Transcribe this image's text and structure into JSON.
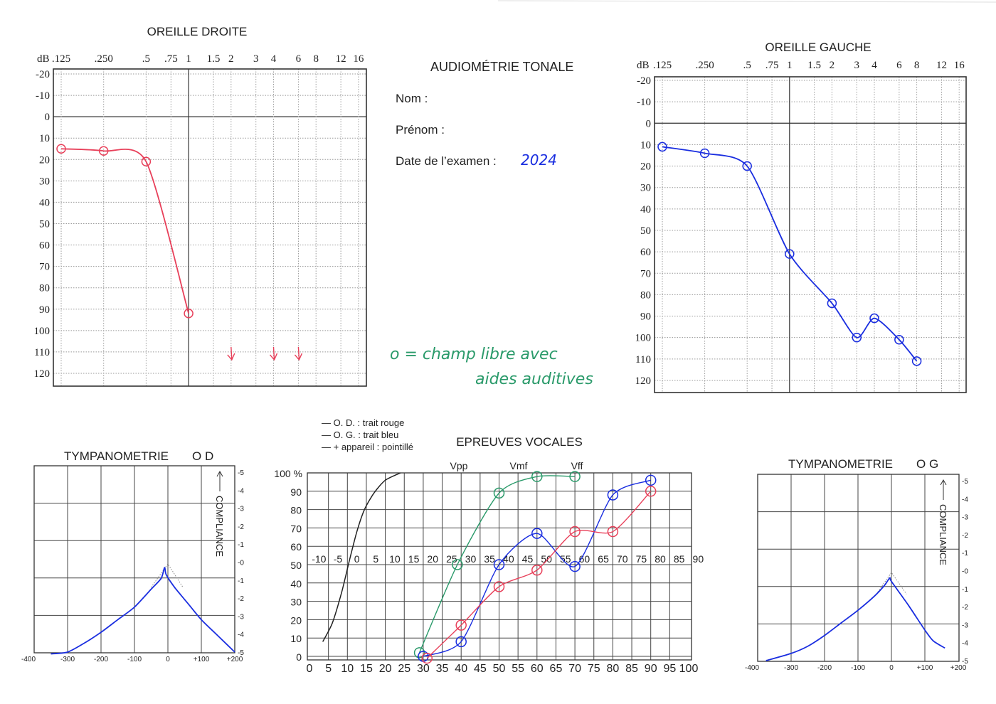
{
  "form": {
    "title": "AUDIOMÉTRIE TONALE",
    "nom_label": "Nom :",
    "prenom_label": "Prénom :",
    "date_label": "Date de l’examen :",
    "date_value": "2024",
    "note_line1": "o = champ libre avec",
    "note_line2": "aides auditives",
    "handwriting_blue": "#1a2ee0",
    "handwriting_green": "#2a9a6a"
  },
  "speech_legend": [
    "— O. D. : trait rouge",
    "— O. G. : trait bleu",
    "— + appareil : pointillé"
  ],
  "chart_data": [
    {
      "type": "line",
      "title": "OREILLE DROITE",
      "y_unit_label": "dB",
      "x_scale": "log",
      "x_ticks": [
        ".125",
        ".250",
        ".5",
        ".75",
        "1",
        "1.5",
        "2",
        "3",
        "4",
        "6",
        "8",
        "12",
        "16"
      ],
      "x_values_khz": [
        0.125,
        0.25,
        0.5,
        0.75,
        1,
        1.5,
        2,
        3,
        4,
        6,
        8,
        12,
        16
      ],
      "y_ticks": [
        -20,
        -10,
        0,
        10,
        20,
        30,
        40,
        50,
        60,
        70,
        80,
        90,
        100,
        110,
        120
      ],
      "ylim": [
        -20,
        120
      ],
      "y_inverted": true,
      "grid": "dotted",
      "series": [
        {
          "color": "#e8405a",
          "marker": "circle",
          "points": [
            [
              0.125,
              15
            ],
            [
              0.25,
              16
            ],
            [
              0.5,
              21
            ],
            [
              1,
              92
            ]
          ]
        }
      ],
      "no_response_khz": [
        2,
        4,
        6
      ],
      "no_response_db": 112
    },
    {
      "type": "line",
      "title": "OREILLE GAUCHE",
      "y_unit_label": "dB",
      "x_scale": "log",
      "x_ticks": [
        ".125",
        ".250",
        ".5",
        ".75",
        "1",
        "1.5",
        "2",
        "3",
        "4",
        "6",
        "8",
        "12",
        "16"
      ],
      "x_values_khz": [
        0.125,
        0.25,
        0.5,
        0.75,
        1,
        1.5,
        2,
        3,
        4,
        6,
        8,
        12,
        16
      ],
      "y_ticks": [
        -20,
        -10,
        0,
        10,
        20,
        30,
        40,
        50,
        60,
        70,
        80,
        90,
        100,
        110,
        120
      ],
      "ylim": [
        -20,
        120
      ],
      "y_inverted": true,
      "grid": "dotted",
      "series": [
        {
          "color": "#1a2ee0",
          "marker": "circle",
          "points": [
            [
              0.125,
              11
            ],
            [
              0.25,
              14
            ],
            [
              0.5,
              20
            ],
            [
              1,
              61
            ],
            [
              2,
              84
            ],
            [
              3,
              100
            ],
            [
              4,
              91
            ],
            [
              6,
              101
            ],
            [
              8,
              111
            ]
          ]
        }
      ]
    },
    {
      "type": "line",
      "title": "EPREUVES   VOCALES",
      "xlim": [
        0,
        100
      ],
      "ylim": [
        0,
        100
      ],
      "x_ticks": [
        "0",
        "5",
        "10",
        "15",
        "20",
        "25",
        "30",
        "35",
        "40",
        "45",
        "50",
        "55",
        "60",
        "65",
        "70",
        "75",
        "80",
        "85",
        "90",
        "95",
        "100"
      ],
      "secondary_x_ticks": [
        "-10",
        "-5",
        "0",
        "5",
        "10",
        "15",
        "20",
        "25",
        "30",
        "35",
        "40",
        "45",
        "50",
        "55",
        "60",
        "65",
        "70",
        "75",
        "80",
        "85",
        "90"
      ],
      "y_ticks": [
        "100 %",
        "90",
        "80",
        "70",
        "60",
        "50",
        "40",
        "30",
        "20",
        "10",
        "0"
      ],
      "markers": [
        {
          "label": "Vpp",
          "x": 40
        },
        {
          "label": "Vmf",
          "x": 55
        },
        {
          "label": "Vff",
          "x": 70
        }
      ],
      "grid": "solid",
      "series": [
        {
          "color": "#222222",
          "marker": "none",
          "points": [
            [
              3.5,
              8
            ],
            [
              6,
              18
            ],
            [
              8.5,
              35
            ],
            [
              10.5,
              52
            ],
            [
              12.5,
              68
            ],
            [
              14.5,
              80
            ],
            [
              17,
              89
            ],
            [
              20,
              96
            ],
            [
              24,
              100
            ]
          ]
        },
        {
          "color": "#2a9a6a",
          "marker": "circle",
          "points": [
            [
              29,
              2
            ],
            [
              39,
              50
            ],
            [
              50,
              89
            ],
            [
              60,
              98
            ],
            [
              70,
              98
            ]
          ]
        },
        {
          "color": "#1a2ee0",
          "marker": "circle",
          "points": [
            [
              30,
              0
            ],
            [
              40,
              8
            ],
            [
              50,
              50
            ],
            [
              60,
              67
            ],
            [
              70,
              49
            ],
            [
              80,
              88
            ],
            [
              90,
              96
            ]
          ]
        },
        {
          "color": "#e8405a",
          "marker": "circle",
          "points": [
            [
              31,
              -1
            ],
            [
              40,
              17
            ],
            [
              50,
              38
            ],
            [
              60,
              47
            ],
            [
              70,
              68
            ],
            [
              80,
              68
            ],
            [
              90,
              90
            ]
          ]
        }
      ]
    },
    {
      "type": "line",
      "title": "TYMPANOMETRIE",
      "ear": "O D",
      "y_axis_label": "COMPLIANCE",
      "xlim": [
        -400,
        200
      ],
      "ylim": [
        -5,
        5
      ],
      "x_ticks": [
        "-400",
        "-300",
        "-200",
        "-100",
        "0",
        "+100",
        "+200"
      ],
      "y_ticks": [
        "-5",
        "-4",
        "-3",
        "-2",
        "-1",
        "-0",
        "-1",
        "-2",
        "-3",
        "-4",
        "-5"
      ],
      "series": [
        {
          "color": "#1a2ee0",
          "points": [
            [
              -350,
              -5.1
            ],
            [
              -300,
              -5
            ],
            [
              -250,
              -4.5
            ],
            [
              -200,
              -3.9
            ],
            [
              -150,
              -3.2
            ],
            [
              -100,
              -2.5
            ],
            [
              -50,
              -1.5
            ],
            [
              -20,
              -0.9
            ],
            [
              -10,
              -0.3
            ],
            [
              -5,
              -0.7
            ],
            [
              20,
              -1.4
            ],
            [
              60,
              -2.3
            ],
            [
              100,
              -3.2
            ],
            [
              150,
              -4.1
            ],
            [
              200,
              -5
            ]
          ]
        }
      ],
      "reference_peak": [
        [
          -50,
          -1.4
        ],
        [
          0,
          -0.1
        ],
        [
          45,
          -1.4
        ]
      ]
    },
    {
      "type": "line",
      "title": "TYMPANOMETRIE",
      "ear": "O G",
      "y_axis_label": "COMPLIANCE",
      "xlim": [
        -400,
        200
      ],
      "ylim": [
        -5,
        5
      ],
      "x_ticks": [
        "-400",
        "-300",
        "-200",
        "-100",
        "0",
        "+100",
        "+200"
      ],
      "y_ticks": [
        "-5",
        "-4",
        "-3",
        "-2",
        "-1",
        "-0",
        "-1",
        "-2",
        "-3",
        "-4",
        "-5"
      ],
      "series": [
        {
          "color": "#1a2ee0",
          "points": [
            [
              -375,
              -5
            ],
            [
              -300,
              -4.6
            ],
            [
              -250,
              -4.2
            ],
            [
              -200,
              -3.6
            ],
            [
              -150,
              -2.9
            ],
            [
              -100,
              -2.2
            ],
            [
              -50,
              -1.4
            ],
            [
              -20,
              -0.8
            ],
            [
              -5,
              -0.4
            ],
            [
              0,
              -0.6
            ],
            [
              50,
              -1.9
            ],
            [
              100,
              -3.3
            ],
            [
              125,
              -3.9
            ],
            [
              160,
              -4.3
            ]
          ]
        }
      ],
      "reference_peak": [
        [
          -45,
          -1.3
        ],
        [
          0,
          -0.1
        ],
        [
          45,
          -1.3
        ]
      ]
    }
  ]
}
